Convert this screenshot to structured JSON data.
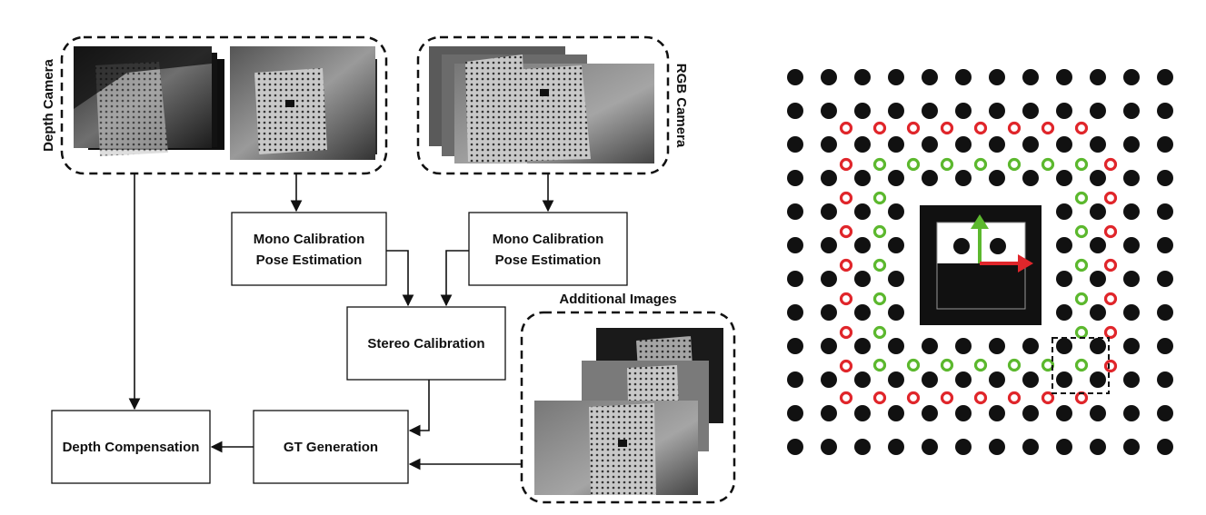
{
  "left_diagram": {
    "depth_camera_label": "Depth Camera",
    "rgb_camera_label": "RGB Camera",
    "additional_images_label": "Additional Images",
    "boxes": {
      "mono_depth": [
        "Mono Calibration",
        "Pose Estimation"
      ],
      "mono_rgb": [
        "Mono Calibration",
        "Pose Estimation"
      ],
      "stereo": "Stereo Calibration",
      "gt": "GT Generation",
      "depth_comp": "Depth Compensation"
    }
  },
  "calibration_board": {
    "grid_rows": 12,
    "grid_cols": 12,
    "dot_color": "#111111",
    "red_marker_color": "#e0262b",
    "green_marker_color": "#5cb82e",
    "marker_color": "#111111",
    "axis_x_color": "#e0262b",
    "axis_y_color": "#5cb82e"
  }
}
